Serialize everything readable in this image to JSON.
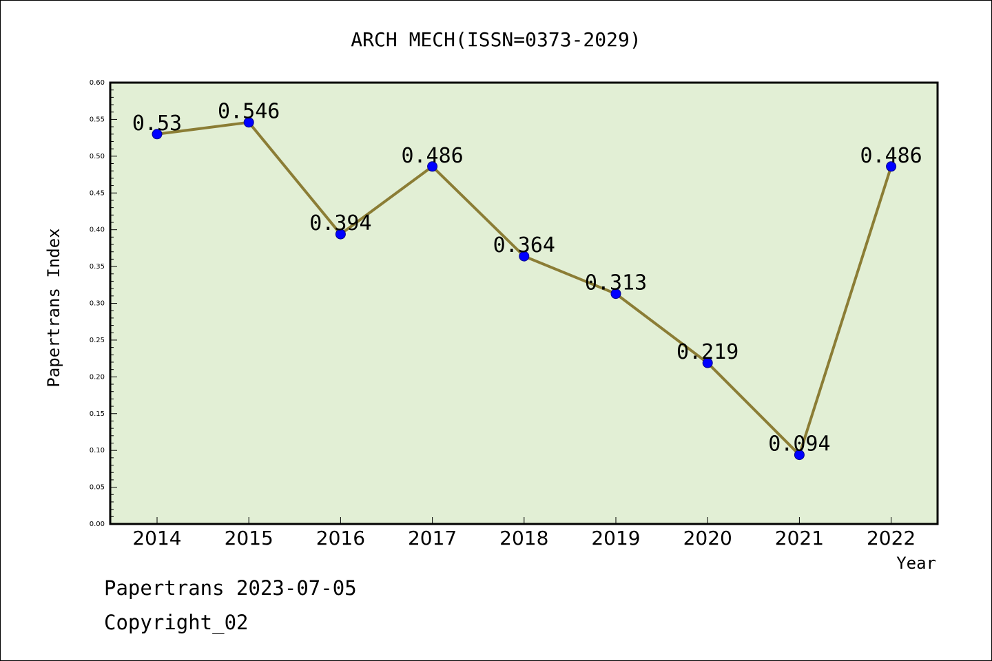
{
  "chart_data": {
    "type": "line",
    "title": "ARCH MECH(ISSN=0373-2029)",
    "xlabel": "Year",
    "ylabel": "Papertrans Index",
    "categories": [
      "2014",
      "2015",
      "2016",
      "2017",
      "2018",
      "2019",
      "2020",
      "2021",
      "2022"
    ],
    "series": [
      {
        "values": [
          0.53,
          0.546,
          0.394,
          0.486,
          0.364,
          0.313,
          0.219,
          0.094,
          0.486
        ],
        "data_labels": [
          "0.53",
          "0.546",
          "0.394",
          "0.486",
          "0.364",
          "0.313",
          "0.219",
          "0.094",
          "0.486"
        ]
      }
    ],
    "ylim": [
      0,
      0.6
    ],
    "y_ticks": [
      "0.00",
      "0.05",
      "0.10",
      "0.15",
      "0.20",
      "0.25",
      "0.30",
      "0.35",
      "0.40",
      "0.45",
      "0.50",
      "0.55",
      "0.60"
    ],
    "grid": false,
    "legend": "none",
    "colors": {
      "plot_background": "#e2efd5",
      "line": "#8b7d35",
      "marker": "#0000ff",
      "marker_edge": "#00008b",
      "axis": "#000000"
    }
  },
  "footer": {
    "line1": "Papertrans 2023-07-05",
    "line2": "Copyright_02"
  }
}
